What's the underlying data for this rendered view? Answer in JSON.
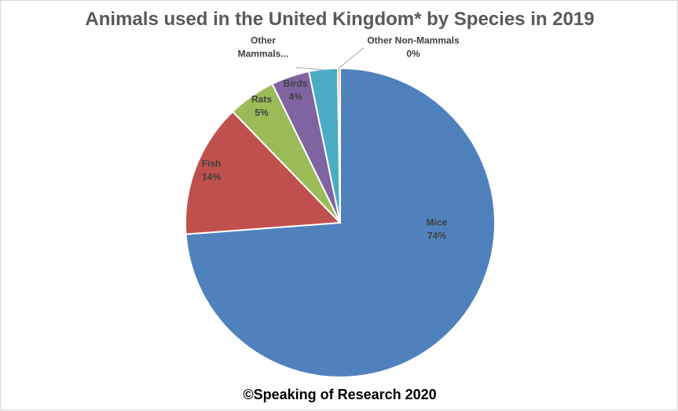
{
  "chart_data": {
    "type": "pie",
    "title": "Animals used in the United Kingdom* by Species in 2019",
    "footer": "©Speaking of Research 2020",
    "slices": [
      {
        "name": "Mice",
        "value": 74,
        "label": "74%",
        "color": "#4f81bd"
      },
      {
        "name": "Fish",
        "value": 14,
        "label": "14%",
        "color": "#c0504d"
      },
      {
        "name": "Rats",
        "value": 5,
        "label": "5%",
        "color": "#9bbb59"
      },
      {
        "name": "Birds",
        "value": 4,
        "label": "4%",
        "color": "#8064a2"
      },
      {
        "name": "Other Mammals...",
        "value": 3,
        "label": "",
        "color": "#4bacc6"
      },
      {
        "name": "Other Non-Mammals",
        "value": 0.25,
        "label": "0%",
        "color": "#f79646"
      }
    ],
    "legend": "none"
  }
}
